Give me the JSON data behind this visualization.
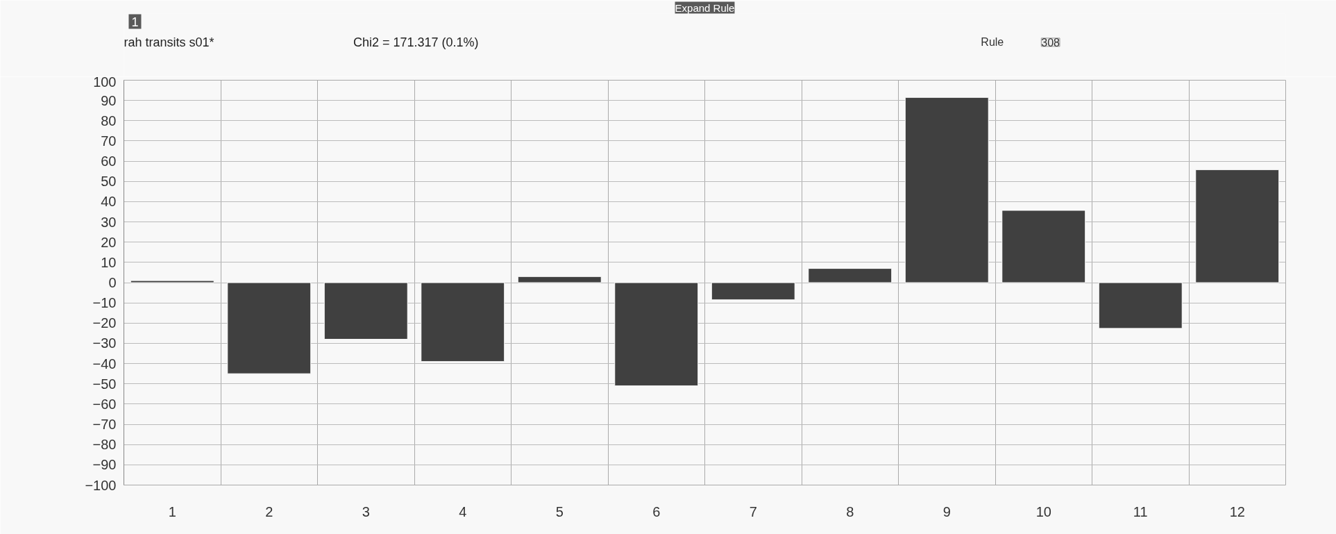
{
  "chart_data": {
    "type": "bar",
    "title": "Expand Rule",
    "annotations": [
      "1",
      "rah transits s01*",
      "Chi2 = 171.317 (0.1%)",
      "Rule",
      "308"
    ],
    "categories": [
      "1",
      "2",
      "3",
      "4",
      "5",
      "6",
      "7",
      "8",
      "9",
      "10",
      "11",
      "12"
    ],
    "values": [
      1,
      -45,
      -28,
      -39,
      3,
      -51,
      -8.5,
      7,
      91.5,
      35.7,
      -22.6,
      55.8
    ],
    "color": "#404040",
    "ylim": [
      -100,
      100
    ],
    "yticks": [
      -100,
      -90,
      -80,
      -70,
      -60,
      -50,
      -40,
      -30,
      -20,
      -10,
      0,
      10,
      20,
      30,
      40,
      50,
      60,
      70,
      80,
      90,
      100
    ],
    "grid": true
  }
}
